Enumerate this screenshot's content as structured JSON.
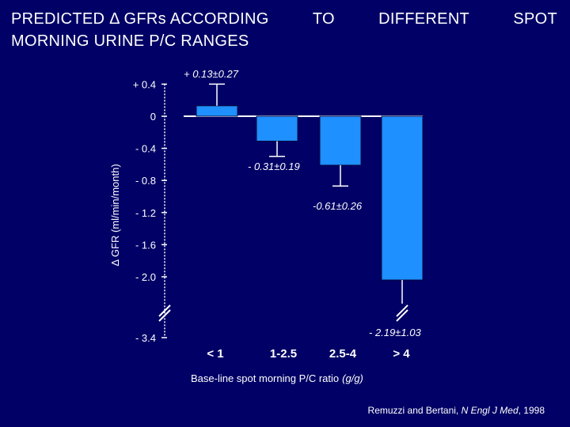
{
  "title": {
    "line1_words": [
      "PREDICTED Δ GFRs ACCORDING",
      "TO",
      "DIFFERENT",
      "SPOT"
    ],
    "line2": "MORNING URINE P/C RANGES"
  },
  "chart_data": {
    "type": "bar",
    "categories": [
      "< 1",
      "1-2.5",
      "2.5-4",
      "> 4"
    ],
    "values": [
      0.13,
      -0.31,
      -0.61,
      -2.19
    ],
    "errors": [
      0.27,
      0.19,
      0.26,
      1.03
    ],
    "data_labels": [
      "+ 0.13±0.27",
      "- 0.31±0.19",
      "-0.61±0.26",
      "- 2.19±1.03"
    ],
    "ylabel": "Δ GFR (ml/min/month)",
    "xlabel_main": "Base-line spot morning  P/C  ratio",
    "xlabel_unit": "(g/g)",
    "yticks": [
      {
        "value": 0.4,
        "label": "+ 0.4"
      },
      {
        "value": 0,
        "label": "0"
      },
      {
        "value": -0.4,
        "label": "- 0.4"
      },
      {
        "value": -0.8,
        "label": "- 0.8"
      },
      {
        "value": -1.2,
        "label": "- 1.2"
      },
      {
        "value": -1.6,
        "label": "- 1.6"
      },
      {
        "value": -2.0,
        "label": "- 2.0"
      },
      {
        "value": -3.4,
        "label": "- 3.4"
      }
    ],
    "ylim": [
      -3.4,
      0.4
    ],
    "axis_break": [
      -2.0,
      -3.4
    ],
    "bar_color": "#1e90ff",
    "grid": false
  },
  "source": {
    "authors": "Remuzzi and Bertani, ",
    "journal": "N Engl J Med",
    "year": ", 1998"
  }
}
